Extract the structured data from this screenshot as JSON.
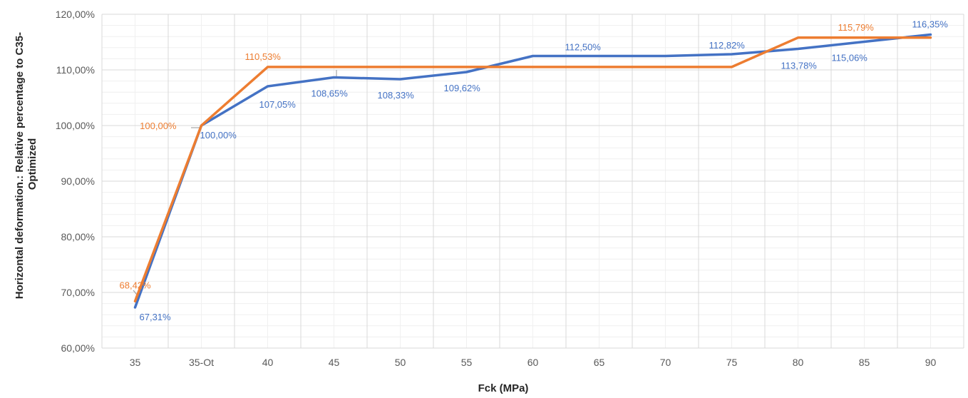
{
  "chart_data": {
    "type": "line",
    "categories": [
      "35",
      "35-Ot",
      "40",
      "45",
      "50",
      "55",
      "60",
      "65",
      "70",
      "75",
      "80",
      "85",
      "90"
    ],
    "xlabel": "Fck (MPa)",
    "ylabel": "Horizontal deformation.: Relative percentage to C35-Optimized",
    "ylabel_lines": [
      "Horizontal deformation.: Relative percentage to C35-",
      "Optimized"
    ],
    "ylim": [
      60,
      120
    ],
    "ymajor": 10,
    "yminor": 2,
    "y_ticks": [
      "60,00%",
      "70,00%",
      "80,00%",
      "90,00%",
      "100,00%",
      "110,00%",
      "120,00%"
    ],
    "grid": true,
    "series": [
      {
        "color": "#4472C4",
        "values": [
          67.31,
          100.0,
          107.05,
          108.65,
          108.33,
          109.62,
          112.5,
          112.5,
          112.5,
          112.82,
          113.78,
          115.06,
          116.35
        ],
        "labels": [
          "67,31%",
          "100,00%",
          "107,05%",
          "108,65%",
          "108,33%",
          "109,62%",
          "",
          "112,50%",
          "",
          "112,82%",
          "113,78%",
          "115,06%",
          "116,35%"
        ]
      },
      {
        "color": "#ED7D31",
        "values": [
          68.42,
          100.0,
          110.53,
          110.53,
          110.53,
          110.53,
          110.53,
          110.53,
          110.53,
          110.53,
          115.79,
          115.79,
          115.79
        ],
        "labels": [
          "68,42%",
          "100,00%",
          "110,53%",
          "",
          "",
          "",
          "",
          "",
          "",
          "",
          "",
          "115,79%",
          ""
        ]
      }
    ]
  }
}
